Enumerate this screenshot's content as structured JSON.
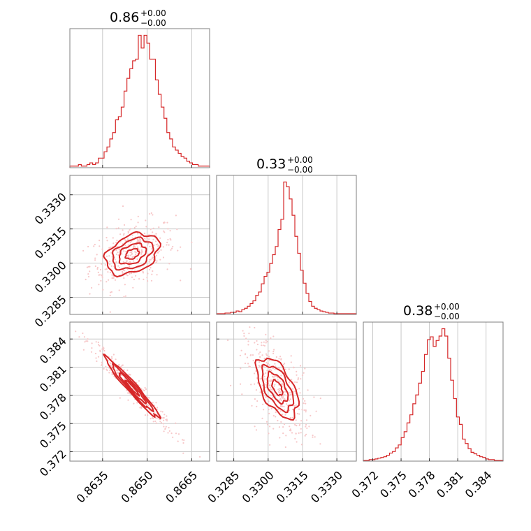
{
  "chart_data": {
    "type": "corner",
    "color": "#d62728",
    "fill_light": "#f4c3c4",
    "point_color": "#f7c8c9",
    "parameters": [
      {
        "name": "",
        "median": 0.8645,
        "title_value": "0.86",
        "err_plus": "+0.00",
        "err_minus": "−0.00",
        "range": [
          0.8624,
          0.8671
        ],
        "ticks": [
          0.8635,
          0.865,
          0.8665
        ],
        "tick_labels": [
          "0.8635",
          "0.8650",
          "0.8665"
        ]
      },
      {
        "name": "",
        "median": 0.3304,
        "title_value": "0.33",
        "err_plus": "+0.00",
        "err_minus": "−0.00",
        "range": [
          0.32775,
          0.33385
        ],
        "ticks": [
          0.3285,
          0.33,
          0.3315,
          0.333
        ],
        "tick_labels": [
          "0.3285",
          "0.3300",
          "0.3315",
          "0.3330"
        ]
      },
      {
        "name": "",
        "median": 0.3788,
        "title_value": "0.38",
        "err_plus": "+0.00",
        "err_minus": "−0.00",
        "range": [
          0.371,
          0.3858
        ],
        "ticks": [
          0.372,
          0.375,
          0.378,
          0.381,
          0.384
        ],
        "tick_labels": [
          "0.372",
          "0.375",
          "0.378",
          "0.381",
          "0.384"
        ]
      }
    ],
    "histograms": [
      {
        "counts": [
          1,
          1,
          1,
          2,
          1,
          1,
          2,
          3,
          2,
          3,
          6,
          6,
          10,
          13,
          18,
          22,
          30,
          32,
          38,
          48,
          56,
          62,
          67,
          68,
          83,
          75,
          83,
          78,
          68,
          68,
          55,
          46,
          38,
          31,
          22,
          18,
          13,
          11,
          9,
          7,
          6,
          4,
          3,
          2,
          2,
          1,
          1,
          1,
          1
        ]
      },
      {
        "counts": [
          1,
          1,
          1,
          2,
          2,
          3,
          3,
          5,
          4,
          7,
          9,
          12,
          16,
          20,
          28,
          33,
          45,
          56,
          62,
          75,
          88,
          100,
          125,
          140,
          195,
          188,
          170,
          146,
          115,
          90,
          65,
          46,
          31,
          19,
          12,
          9,
          7,
          5,
          4,
          3,
          2,
          2,
          1,
          1,
          1,
          1,
          1,
          1,
          1,
          1
        ]
      },
      {
        "counts": [
          1,
          1,
          2,
          2,
          3,
          4,
          5,
          6,
          8,
          11,
          13,
          18,
          22,
          32,
          40,
          52,
          63,
          78,
          90,
          106,
          122,
          145,
          165,
          169,
          156,
          164,
          170,
          180,
          170,
          140,
          110,
          85,
          60,
          50,
          30,
          24,
          17,
          12,
          10,
          8,
          6,
          5,
          3,
          2,
          2,
          1,
          1,
          1
        ]
      }
    ],
    "correlations": {
      "p0_p1": 0.35,
      "p0_p2": -0.97,
      "p1_p2": -0.55
    },
    "sigmas": {
      "p0": 0.00045,
      "p1": 0.00045,
      "p2": 0.0016
    }
  }
}
